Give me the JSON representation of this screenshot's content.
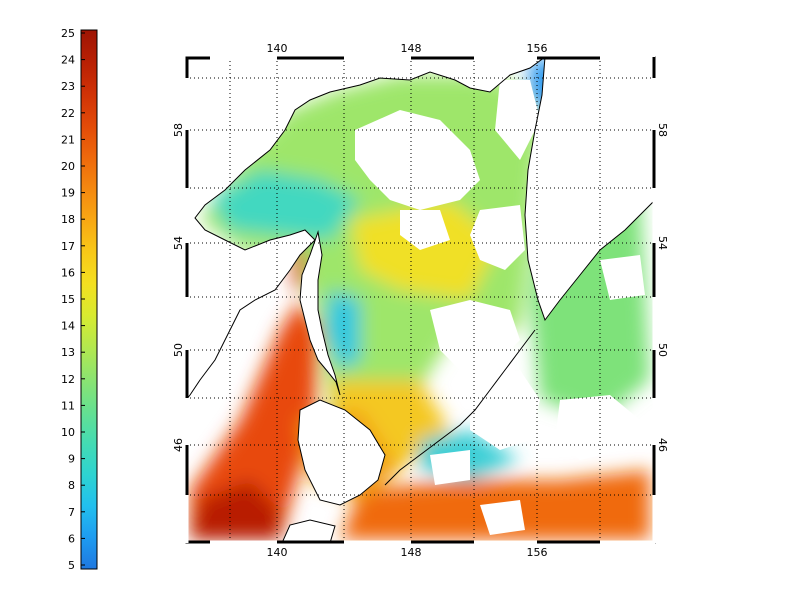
{
  "colorbar": {
    "min": 5,
    "max": 25,
    "ticks": [
      "25",
      "24",
      "23",
      "22",
      "21",
      "20",
      "19",
      "18",
      "17",
      "16",
      "15",
      "14",
      "13",
      "12",
      "11",
      "10",
      "9",
      "8",
      "7",
      "6",
      "5"
    ],
    "colors": [
      "#1f78e0",
      "#1e9cf0",
      "#22c0ee",
      "#2ed4d0",
      "#45dcb2",
      "#66e090",
      "#8ce470",
      "#b4e84e",
      "#d8ea30",
      "#f4e020",
      "#f8c818",
      "#f8a814",
      "#f48810",
      "#ee680c",
      "#e24a08",
      "#d03206",
      "#b82004",
      "#9e1404"
    ]
  },
  "axes": {
    "lon_ticks": [
      "140",
      "148",
      "156"
    ],
    "lat_ticks": [
      "58",
      "54",
      "50",
      "46"
    ],
    "lon_range": [
      135,
      163
    ],
    "lat_range": [
      41.5,
      60.3
    ],
    "grid": "dotted"
  },
  "map": {
    "land_color": "#ffffff",
    "coast_color": "#000000"
  }
}
